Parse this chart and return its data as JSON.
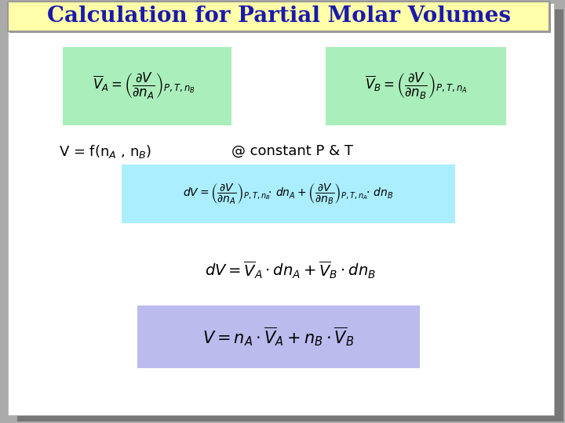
{
  "title": "Calculation for Partial Molar Volumes",
  "title_color": "#1a1aaa",
  "title_bg": "#ffffaa",
  "title_border": "#999999",
  "bg_color": "#aaaaaa",
  "slide_bg": "#ffffff",
  "green_box_color": "#aaeebb",
  "cyan_box_color": "#aaeeff",
  "lavender_box_color": "#bbbbee",
  "shadow_color": "#888888"
}
